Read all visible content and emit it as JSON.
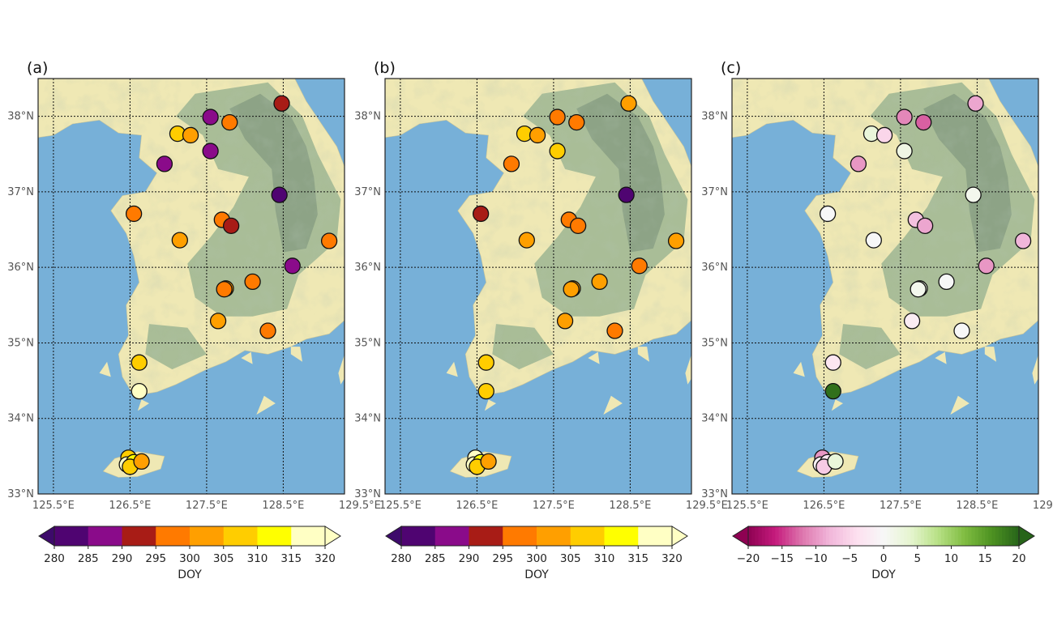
{
  "figure": {
    "panels": [
      {
        "label": "(a)",
        "colorbar": "doy",
        "values": [
          295,
          287,
          305,
          300,
          287,
          292,
          287,
          283,
          297,
          297,
          300,
          292,
          297,
          287,
          297,
          303,
          299,
          302,
          299,
          305,
          317,
          308,
          316,
          313,
          308,
          302
        ]
      },
      {
        "label": "(b)",
        "colorbar": "doy",
        "values": [
          297,
          298,
          308,
          300,
          307,
          300,
          297,
          283,
          293,
          299,
          300,
          297,
          300,
          297,
          300,
          304,
          304,
          302,
          298,
          306,
          308,
          318,
          315,
          313,
          309,
          302
        ]
      },
      {
        "label": "(c)",
        "colorbar": "diff",
        "values": [
          -13,
          -11,
          3,
          -5,
          2,
          -9,
          -10,
          1,
          0,
          -7,
          0,
          -9,
          -8,
          -10,
          0,
          2,
          1,
          -2,
          0,
          -3,
          19,
          -10,
          -1,
          -3,
          -6,
          3
        ]
      }
    ],
    "station_coords": [
      [
        127.8,
        37.92
      ],
      [
        127.55,
        37.99
      ],
      [
        127.12,
        37.77
      ],
      [
        127.29,
        37.75
      ],
      [
        127.55,
        37.54
      ],
      [
        128.48,
        38.17
      ],
      [
        126.95,
        37.37
      ],
      [
        128.45,
        36.96
      ],
      [
        126.55,
        36.71
      ],
      [
        127.7,
        36.63
      ],
      [
        127.15,
        36.36
      ],
      [
        127.82,
        36.55
      ],
      [
        129.1,
        36.35
      ],
      [
        128.62,
        36.02
      ],
      [
        128.1,
        35.81
      ],
      [
        127.75,
        35.72
      ],
      [
        127.73,
        35.71
      ],
      [
        127.65,
        35.29
      ],
      [
        128.3,
        35.16
      ],
      [
        126.62,
        34.74
      ],
      [
        126.62,
        34.36
      ],
      [
        126.48,
        33.48
      ],
      [
        126.46,
        33.39
      ],
      [
        126.55,
        33.42
      ],
      [
        126.5,
        33.36
      ],
      [
        126.65,
        33.43
      ]
    ],
    "axes": {
      "xticks": [
        "125.5°E",
        "126.5°E",
        "127.5°E",
        "128.5°E",
        "129.5°E"
      ],
      "xtick_values": [
        125.5,
        126.5,
        127.5,
        128.5,
        129.5
      ],
      "yticks": [
        "33°N",
        "34°N",
        "35°N",
        "36°N",
        "37°N",
        "38°N"
      ],
      "ytick_values": [
        33,
        34,
        35,
        36,
        37,
        38
      ],
      "lon_range": [
        125.3,
        129.3
      ],
      "lat_range": [
        33.0,
        38.5
      ]
    },
    "colorbars": {
      "doy": {
        "title": "DOY",
        "ticks": [
          "280",
          "285",
          "290",
          "295",
          "300",
          "305",
          "310",
          "315",
          "320"
        ],
        "tick_values": [
          280,
          285,
          290,
          295,
          300,
          305,
          310,
          315,
          320
        ],
        "colors": [
          "#3d0a6b",
          "#4f0471",
          "#8a0b8a",
          "#a81c16",
          "#ff7a00",
          "#ff9f00",
          "#ffcd00",
          "#ffff00",
          "#ffffc4"
        ],
        "extend": "both"
      },
      "diff": {
        "title": "DOY",
        "ticks": [
          "−20",
          "−15",
          "−10",
          "−5",
          "0",
          "5",
          "10",
          "15",
          "20"
        ],
        "tick_values": [
          -20,
          -15,
          -10,
          -5,
          0,
          5,
          10,
          15,
          20
        ],
        "colors": [
          "#8e0152",
          "#c51b7d",
          "#de77ae",
          "#f1b6da",
          "#fde0ef",
          "#f7f7f7",
          "#e6f5d0",
          "#b8e186",
          "#7fbc41",
          "#4d9221",
          "#276419"
        ],
        "extend": "both"
      }
    },
    "map_colors": {
      "ocean": "#77b0d8",
      "lowland": "#efe8b4",
      "highland": "#a9bd97",
      "mountain": "#889f83",
      "grid": "#111111"
    }
  }
}
